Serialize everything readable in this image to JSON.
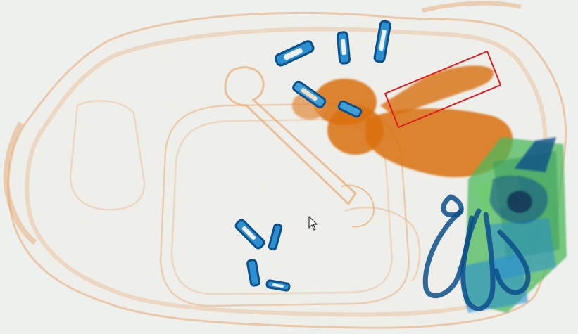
{
  "scan": {
    "background_color": "#eef0ee",
    "organic_color": "#e6a872",
    "dense_organic_color": "#d9700f",
    "inorganic_color": "#2b8fd0",
    "metal_dark_color": "#0c4f8a",
    "mixed_color": "#4cb85c",
    "dense_core_color": "#1a1a1a"
  },
  "annotation": {
    "color": "#e0191e",
    "shape": "rotated-rectangle"
  },
  "cursor": {
    "icon": "arrow-pointer-icon"
  }
}
